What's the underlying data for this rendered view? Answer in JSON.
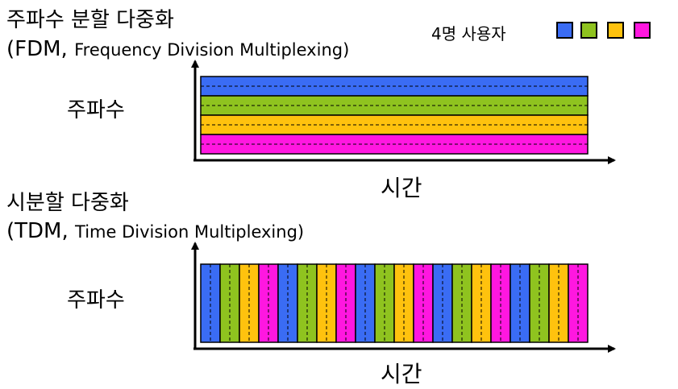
{
  "fdm": {
    "title": "주파수 분할 다중화",
    "abbr_open": "(FDM, ",
    "full_name": "Frequency Division Multiplexing)",
    "ylabel": "주파수",
    "xlabel": "시간"
  },
  "tdm": {
    "title": "시분할 다중화",
    "abbr_open": "(TDM, ",
    "full_name": "Time Division Multiplexing)",
    "ylabel": "주파수",
    "xlabel": "시간"
  },
  "legend": {
    "label": "4명 사용자",
    "colors": [
      "#3a6cf4",
      "#8fc31f",
      "#ffc20e",
      "#ff17e0"
    ]
  },
  "tdm_slot_count": 20
}
